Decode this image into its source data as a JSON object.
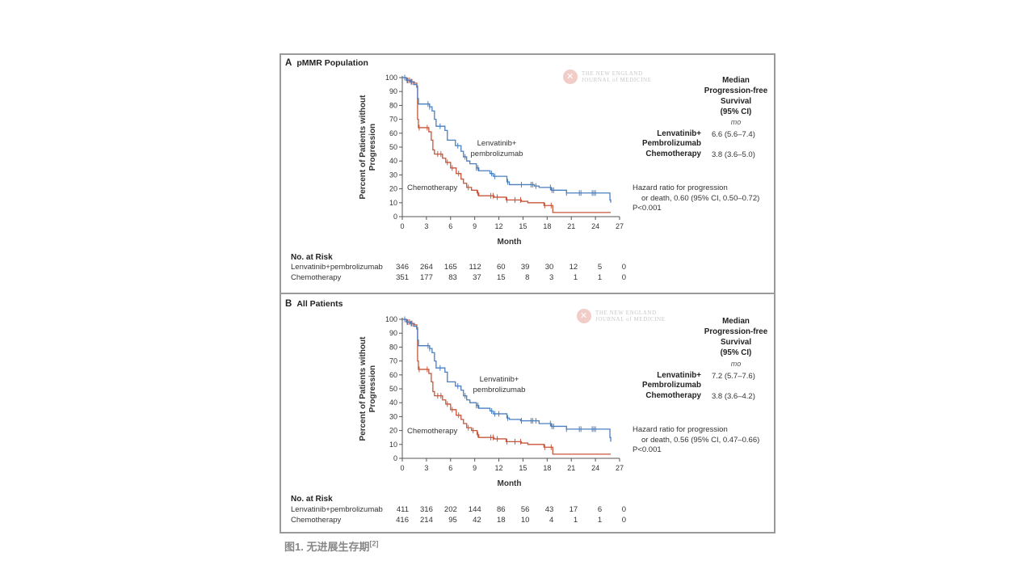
{
  "figure_caption": "图1. 无进展生存期",
  "figure_caption_ref": "[2]",
  "colors": {
    "lenvatinib": "#4a7fc0",
    "chemotherapy": "#c8563a",
    "frame": "#9a9a9a"
  },
  "logo": {
    "line1": "THE NEW ENGLAND",
    "line2": "JOURNAL of MEDICINE"
  },
  "chart_data": [
    {
      "type": "line",
      "subtype": "kaplan-meier",
      "panel_letter": "A",
      "title": "pMMR Population",
      "xlabel": "Month",
      "ylabel_line1": "Percent of Patients without",
      "ylabel_line2": "Progression",
      "xlim": [
        0,
        27
      ],
      "ylim": [
        0,
        100
      ],
      "xticks": [
        0,
        3,
        6,
        9,
        12,
        15,
        18,
        21,
        24,
        27
      ],
      "yticks": [
        0,
        10,
        20,
        30,
        40,
        50,
        60,
        70,
        80,
        90,
        100
      ],
      "series": [
        {
          "name": "Lenvatinib+pembrolizumab",
          "label_line1": "Lenvatinib+",
          "label_line2": "pembrolizumab",
          "color": "#4a7fc0",
          "x": [
            0,
            0.5,
            1.0,
            1.4,
            1.8,
            1.9,
            2.0,
            3.4,
            3.7,
            4.0,
            4.2,
            5.3,
            5.6,
            6.6,
            7.3,
            7.6,
            8.0,
            8.4,
            9.2,
            9.5,
            10.9,
            11.3,
            13.0,
            13.3,
            16.4,
            17.0,
            18.5,
            20.4,
            25.8,
            25.9
          ],
          "y": [
            100,
            98,
            97,
            95,
            93,
            85,
            81,
            79,
            76,
            70,
            65,
            62,
            55,
            51,
            47,
            43,
            40,
            38,
            35,
            33,
            31,
            29,
            25,
            23,
            22,
            21,
            19,
            17,
            12,
            10
          ],
          "censor_x": [
            0.3,
            0.7,
            1.1,
            3.2,
            3.4,
            4.7,
            6.9,
            7.8,
            9.2,
            9.4,
            11.1,
            11.5,
            13.1,
            14.8,
            16.0,
            16.2,
            16.6,
            18.4,
            18.6,
            18.8,
            20.4,
            22.0,
            22.2,
            23.6,
            23.8,
            24.0
          ]
        },
        {
          "name": "Chemotherapy",
          "label_line1": "Chemotherapy",
          "color": "#c8563a",
          "x": [
            0,
            0.5,
            1.0,
            1.5,
            1.8,
            1.9,
            2.0,
            3.3,
            3.6,
            3.8,
            4.0,
            5.0,
            5.4,
            6.0,
            6.7,
            7.3,
            7.6,
            8.0,
            8.6,
            9.3,
            9.5,
            11.4,
            12.9,
            14.8,
            15.6,
            17.6,
            18.7,
            25.9
          ],
          "y": [
            100,
            98,
            97,
            96,
            94,
            70,
            64,
            61,
            55,
            48,
            45,
            42,
            39,
            35,
            31,
            27,
            24,
            21,
            19,
            17,
            15,
            14,
            12,
            11,
            10,
            8,
            3,
            3
          ],
          "censor_x": [
            0.3,
            0.6,
            0.9,
            1.2,
            2.1,
            3.1,
            4.4,
            4.8,
            5.6,
            6.2,
            7.0,
            8.2,
            9.4,
            11.0,
            11.3,
            11.8,
            13.0,
            14.0,
            14.7,
            17.7,
            18.5
          ]
        }
      ],
      "median_header": [
        "Median",
        "Progression-free",
        "Survival",
        "(95% CI)"
      ],
      "median_unit": "mo",
      "median_rows": [
        {
          "arm_line1": "Lenvatinib+",
          "arm_line2": "Pembrolizumab",
          "value": "6.6 (5.6–7.4)"
        },
        {
          "arm_line1": "Chemotherapy",
          "value": "3.8 (3.6–5.0)"
        }
      ],
      "hazard_line1": "Hazard ratio for progression",
      "hazard_line2": "or death, 0.60 (95% CI, 0.50–0.72)",
      "p_value": "P<0.001",
      "at_risk": {
        "title": "No. at Risk",
        "rows": [
          {
            "label": "Lenvatinib+pembrolizumab",
            "values": [
              "346",
              "264",
              "165",
              "112",
              "60",
              "39",
              "30",
              "12",
              "5",
              "0"
            ]
          },
          {
            "label": "Chemotherapy",
            "values": [
              "351",
              "177",
              "83",
              "37",
              "15",
              "8",
              "3",
              "1",
              "1",
              "0"
            ]
          }
        ]
      }
    },
    {
      "type": "line",
      "subtype": "kaplan-meier",
      "panel_letter": "B",
      "title": "All Patients",
      "xlabel": "Month",
      "ylabel_line1": "Percent of Patients without",
      "ylabel_line2": "Progression",
      "xlim": [
        0,
        27
      ],
      "ylim": [
        0,
        100
      ],
      "xticks": [
        0,
        3,
        6,
        9,
        12,
        15,
        18,
        21,
        24,
        27
      ],
      "yticks": [
        0,
        10,
        20,
        30,
        40,
        50,
        60,
        70,
        80,
        90,
        100
      ],
      "series": [
        {
          "name": "Lenvatinib+pembrolizumab",
          "label_line1": "Lenvatinib+",
          "label_line2": "pembrolizumab",
          "color": "#4a7fc0",
          "x": [
            0,
            0.5,
            1.0,
            1.4,
            1.8,
            1.9,
            2.0,
            3.4,
            3.7,
            4.0,
            4.2,
            5.3,
            5.6,
            6.6,
            7.3,
            7.6,
            8.0,
            8.4,
            9.2,
            9.5,
            10.9,
            11.3,
            13.0,
            13.3,
            14.7,
            17.0,
            18.5,
            20.4,
            25.8,
            25.9
          ],
          "y": [
            100,
            98,
            97,
            95,
            93,
            85,
            81,
            79,
            76,
            70,
            65,
            62,
            55,
            52,
            49,
            45,
            42,
            40,
            38,
            36,
            34,
            32,
            29,
            28,
            27,
            25,
            23,
            21,
            15,
            12
          ],
          "censor_x": [
            0.3,
            0.7,
            1.1,
            3.2,
            3.4,
            4.7,
            6.9,
            7.8,
            9.2,
            9.4,
            11.1,
            11.5,
            12.0,
            13.1,
            14.8,
            16.0,
            16.2,
            16.6,
            18.4,
            18.6,
            18.8,
            20.4,
            22.0,
            22.2,
            23.6,
            23.8,
            24.0
          ]
        },
        {
          "name": "Chemotherapy",
          "label_line1": "Chemotherapy",
          "color": "#c8563a",
          "x": [
            0,
            0.5,
            1.0,
            1.5,
            1.8,
            1.9,
            2.0,
            3.3,
            3.6,
            3.8,
            4.0,
            5.0,
            5.4,
            6.0,
            6.7,
            7.3,
            7.6,
            8.0,
            8.6,
            9.3,
            9.5,
            11.4,
            12.9,
            14.8,
            15.6,
            17.6,
            18.7,
            25.9
          ],
          "y": [
            100,
            98,
            97,
            96,
            94,
            70,
            64,
            61,
            55,
            48,
            45,
            42,
            39,
            35,
            31,
            28,
            25,
            22,
            20,
            17,
            15,
            14,
            12,
            11,
            10,
            8,
            3,
            3
          ],
          "censor_x": [
            0.3,
            0.6,
            0.9,
            1.2,
            2.1,
            3.1,
            4.4,
            4.8,
            5.6,
            6.2,
            7.0,
            8.2,
            8.8,
            9.4,
            11.0,
            11.3,
            11.8,
            13.0,
            14.0,
            14.7,
            17.7,
            18.5
          ]
        }
      ],
      "median_header": [
        "Median",
        "Progression-free",
        "Survival",
        "(95% CI)"
      ],
      "median_unit": "mo",
      "median_rows": [
        {
          "arm_line1": "Lenvatinib+",
          "arm_line2": "Pembrolizumab",
          "value": "7.2 (5.7–7.6)"
        },
        {
          "arm_line1": "Chemotherapy",
          "value": "3.8 (3.6–4.2)"
        }
      ],
      "hazard_line1": "Hazard ratio for progression",
      "hazard_line2": "or death, 0.56 (95% CI, 0.47–0.66)",
      "p_value": "P<0.001",
      "at_risk": {
        "title": "No. at Risk",
        "rows": [
          {
            "label": "Lenvatinib+pembrolizumab",
            "values": [
              "411",
              "316",
              "202",
              "144",
              "86",
              "56",
              "43",
              "17",
              "6",
              "0"
            ]
          },
          {
            "label": "Chemotherapy",
            "values": [
              "416",
              "214",
              "95",
              "42",
              "18",
              "10",
              "4",
              "1",
              "1",
              "0"
            ]
          }
        ]
      }
    }
  ]
}
